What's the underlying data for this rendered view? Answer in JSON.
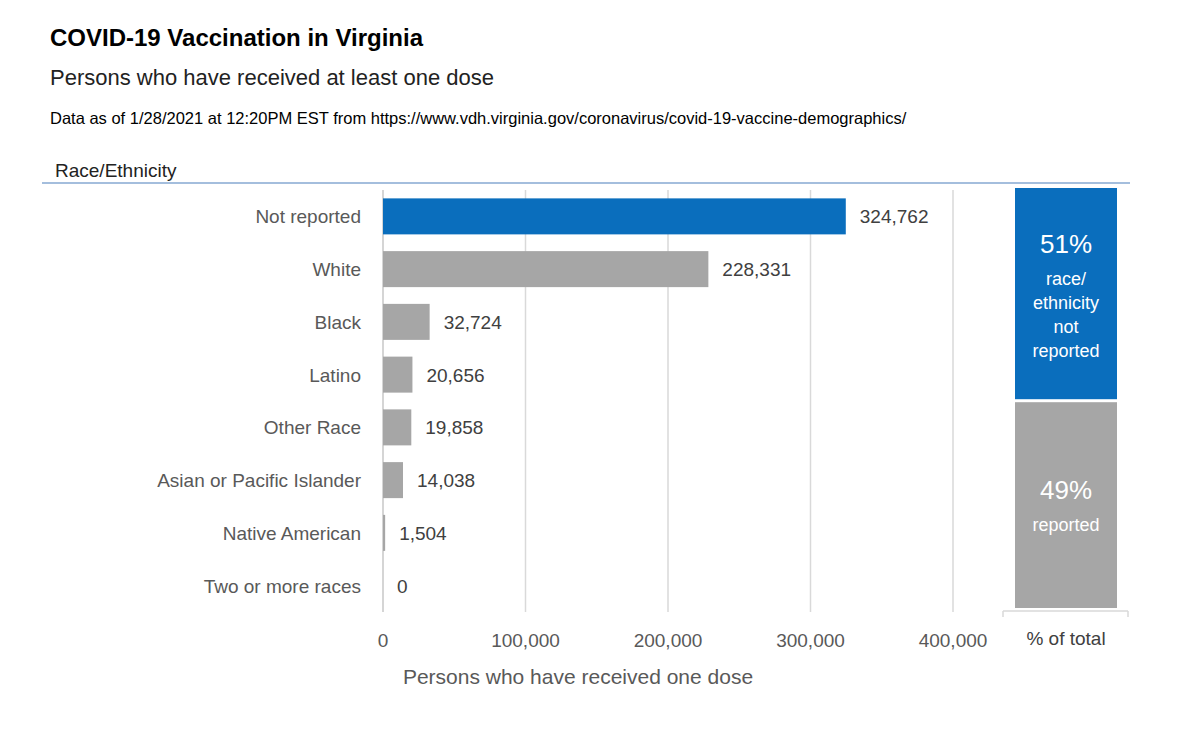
{
  "chart_data": [
    {
      "type": "bar",
      "orientation": "horizontal",
      "title": "COVID-19 Vaccination in Virginia",
      "subtitle": "Persons who have received at least one dose",
      "source": "Data as of 1/28/2021 at 12:20PM EST from https://www.vdh.virginia.gov/coronavirus/covid-19-vaccine-demographics/",
      "y_label": "Race/Ethnicity",
      "x_label": "Persons who have received one dose",
      "categories": [
        "Not reported",
        "White",
        "Black",
        "Latino",
        "Other Race",
        "Asian or Pacific Islander",
        "Native American",
        "Two or more races"
      ],
      "values": [
        324762,
        228331,
        32724,
        20656,
        19858,
        14038,
        1504,
        0
      ],
      "value_labels": [
        "324,762",
        "228,331",
        "32,724",
        "20,656",
        "19,858",
        "14,038",
        "1,504",
        "0"
      ],
      "colors": [
        "#0a6ebd",
        "#a6a6a6",
        "#a6a6a6",
        "#a6a6a6",
        "#a6a6a6",
        "#a6a6a6",
        "#a6a6a6",
        "#a6a6a6"
      ],
      "xlim": [
        0,
        400000
      ],
      "xticks": [
        0,
        {
          "value": 100000,
          "label": "100,000"
        },
        {
          "value": 200000,
          "label": "200,000"
        },
        {
          "value": 300000,
          "label": "300,000"
        },
        {
          "value": 400000,
          "label": "400,000"
        }
      ],
      "grid": true,
      "data_labels": true
    },
    {
      "type": "bar",
      "stacked": true,
      "x_label": "% of total",
      "categories": [
        null
      ],
      "series": [
        {
          "name": "reported",
          "color": "#a6a6a6",
          "values": [
            49
          ],
          "value_labels": [
            "49%"
          ]
        },
        {
          "name": "race/ethnicity not reported",
          "color": "#0a6ebd",
          "values": [
            51
          ],
          "value_labels": [
            "51%"
          ]
        }
      ],
      "ylim": [
        0,
        100
      ],
      "tick_labels": false,
      "data_labels": true
    }
  ]
}
